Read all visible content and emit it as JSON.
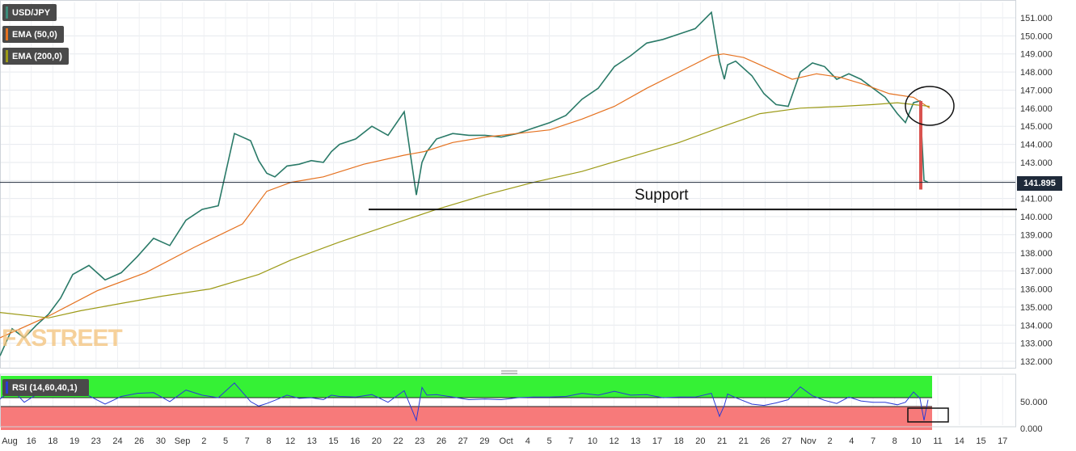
{
  "legend": {
    "symbol": "USD/JPY",
    "ema50": "EMA (50,0)",
    "ema200": "EMA (200,0)",
    "symbol_color": "#3c8a7a",
    "ema50_color": "#e5711f",
    "ema200_color": "#9c9a16"
  },
  "last_price": "141.895",
  "support_label": "Support",
  "watermark": "FXSTREET",
  "rsi": {
    "label": "RSI (14,60,40,1)",
    "overbought_color": "#35f135",
    "oversold_color": "#f77a7a",
    "line_color": "#2a3ad4",
    "levels": [
      60,
      40
    ],
    "y_ticks": [
      "50.000",
      "0.000"
    ]
  },
  "chart_data": {
    "type": "line",
    "title": "USD/JPY",
    "ylabel": "",
    "xlabel": "",
    "ylim": [
      131.6,
      151.7
    ],
    "y_ticks": [
      "151.000",
      "150.000",
      "149.000",
      "148.000",
      "147.000",
      "146.000",
      "145.000",
      "144.000",
      "143.000",
      "142.000",
      "141.000",
      "140.000",
      "139.000",
      "138.000",
      "137.000",
      "136.000",
      "135.000",
      "134.000",
      "133.000",
      "132.000"
    ],
    "x_ticks": [
      "Aug",
      "16",
      "18",
      "19",
      "23",
      "24",
      "26",
      "30",
      "Sep",
      "2",
      "5",
      "7",
      "8",
      "12",
      "13",
      "15",
      "16",
      "20",
      "22",
      "23",
      "26",
      "27",
      "29",
      "Oct",
      "4",
      "5",
      "7",
      "10",
      "12",
      "13",
      "17",
      "18",
      "20",
      "21",
      "21",
      "26",
      "27",
      "Nov",
      "2",
      "4",
      "7",
      "8",
      "10",
      "11",
      "14",
      "15",
      "17"
    ],
    "series": [
      {
        "name": "USD/JPY",
        "x": [
          0,
          15,
          30,
          45,
          60,
          75,
          90,
          110,
          130,
          150,
          170,
          190,
          210,
          230,
          250,
          270,
          290,
          310,
          320,
          330,
          340,
          355,
          370,
          385,
          400,
          410,
          420,
          440,
          460,
          480,
          500,
          515,
          522,
          528,
          540,
          560,
          580,
          600,
          620,
          640,
          660,
          680,
          700,
          720,
          740,
          760,
          780,
          800,
          820,
          840,
          860,
          880,
          890,
          896,
          900,
          910,
          930,
          945,
          960,
          975,
          990,
          1005,
          1020,
          1035,
          1050,
          1065,
          1080,
          1095,
          1110,
          1120,
          1130,
          1138,
          1143,
          1148
        ],
        "values": [
          132.3,
          133.8,
          133.3,
          134.0,
          134.6,
          135.5,
          136.8,
          137.3,
          136.5,
          136.9,
          137.8,
          138.8,
          138.4,
          139.8,
          140.4,
          140.6,
          144.6,
          144.2,
          143.1,
          142.4,
          142.2,
          142.8,
          142.9,
          143.1,
          143.0,
          143.6,
          144.0,
          144.3,
          145.0,
          144.5,
          145.8,
          141.2,
          143.0,
          143.6,
          144.3,
          144.6,
          144.5,
          144.5,
          144.4,
          144.6,
          144.9,
          145.2,
          145.6,
          146.5,
          147.1,
          148.3,
          148.9,
          149.6,
          149.8,
          150.1,
          150.4,
          151.3,
          148.6,
          147.6,
          148.4,
          148.6,
          147.8,
          146.8,
          146.2,
          146.1,
          148.0,
          148.5,
          148.3,
          147.6,
          147.9,
          147.6,
          147.1,
          146.6,
          145.7,
          145.2,
          146.3,
          146.4,
          142.0,
          141.9
        ]
      },
      {
        "name": "EMA (50,0)",
        "x": [
          0,
          60,
          120,
          180,
          240,
          300,
          330,
          360,
          400,
          450,
          500,
          525,
          560,
          600,
          640,
          680,
          720,
          760,
          800,
          840,
          880,
          895,
          920,
          950,
          980,
          1010,
          1040,
          1070,
          1100,
          1130,
          1150
        ],
        "values": [
          133.3,
          134.5,
          135.9,
          136.9,
          138.3,
          139.6,
          141.4,
          141.9,
          142.2,
          142.9,
          143.4,
          143.6,
          144.1,
          144.4,
          144.6,
          144.8,
          145.4,
          146.1,
          147.1,
          148.0,
          148.9,
          149.0,
          148.8,
          148.2,
          147.6,
          147.9,
          147.7,
          147.3,
          146.8,
          146.6,
          146.0
        ]
      },
      {
        "name": "EMA (200,0)",
        "x": [
          0,
          60,
          100,
          150,
          200,
          260,
          320,
          360,
          420,
          480,
          540,
          600,
          660,
          720,
          780,
          840,
          895,
          940,
          990,
          1040,
          1080,
          1110,
          1130,
          1150
        ],
        "values": [
          134.7,
          134.4,
          134.8,
          135.2,
          135.6,
          136.0,
          136.8,
          137.6,
          138.6,
          139.5,
          140.4,
          141.2,
          141.9,
          142.5,
          143.3,
          144.1,
          145.0,
          145.7,
          146.0,
          146.1,
          146.2,
          146.3,
          146.2,
          146.1
        ]
      }
    ],
    "support_level": 140.4,
    "grid": true
  }
}
